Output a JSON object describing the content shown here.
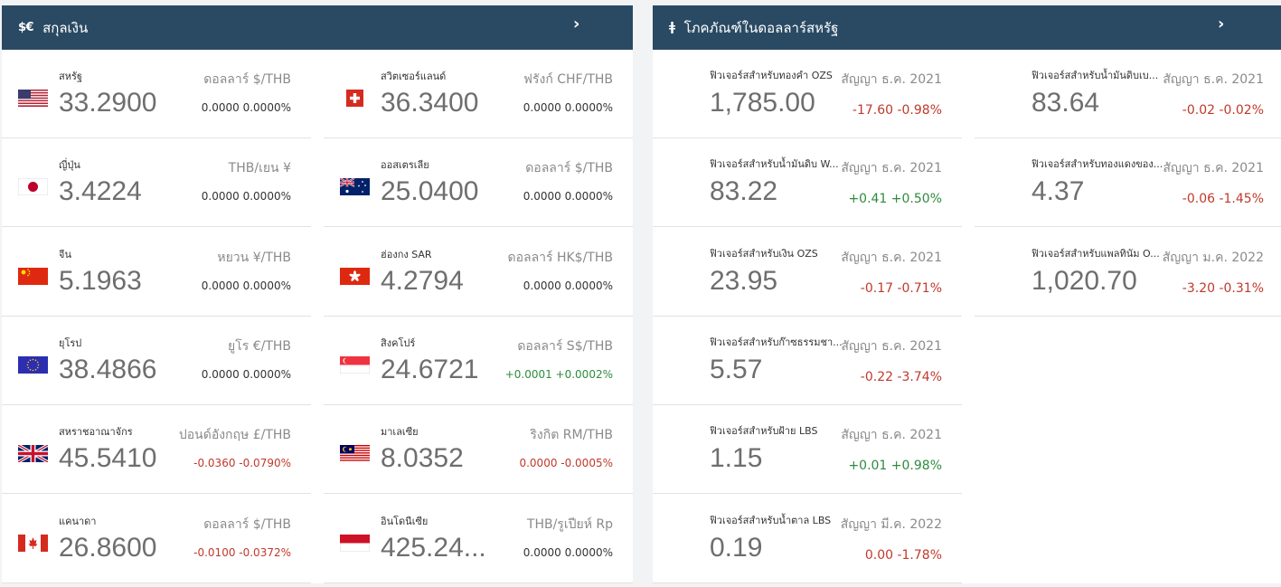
{
  "currency_panel": {
    "icon": "$€",
    "title": "สกุลเงิน",
    "arrow": "›",
    "items": [
      {
        "country": "สหรัฐ",
        "rate": "33.2900",
        "pair": "ดอลลาร์ $/THB",
        "change": "0.0000 0.0000%",
        "dir": "flat",
        "flag": "us"
      },
      {
        "country": "สวิตเซอร์แลนด์",
        "rate": "36.3400",
        "pair": "ฟรังก์ CHF/THB",
        "change": "0.0000 0.0000%",
        "dir": "flat",
        "flag": "ch"
      },
      {
        "country": "ญี่ปุ่น",
        "rate": "3.4224",
        "pair": "THB/เยน ¥",
        "change": "0.0000 0.0000%",
        "dir": "flat",
        "flag": "jp"
      },
      {
        "country": "ออสเตรเลีย",
        "rate": "25.0400",
        "pair": "ดอลลาร์ $/THB",
        "change": "0.0000 0.0000%",
        "dir": "flat",
        "flag": "au"
      },
      {
        "country": "จีน",
        "rate": "5.1963",
        "pair": "หยวน ¥/THB",
        "change": "0.0000 0.0000%",
        "dir": "flat",
        "flag": "cn"
      },
      {
        "country": "ฮ่องกง SAR",
        "rate": "4.2794",
        "pair": "ดอลลาร์ HK$/THB",
        "change": "0.0000 0.0000%",
        "dir": "flat",
        "flag": "hk"
      },
      {
        "country": "ยุโรป",
        "rate": "38.4866",
        "pair": "ยูโร €/THB",
        "change": "0.0000 0.0000%",
        "dir": "flat",
        "flag": "eu"
      },
      {
        "country": "สิงคโปร์",
        "rate": "24.6721",
        "pair": "ดอลลาร์ S$/THB",
        "change": "+0.0001 +0.0002%",
        "dir": "up",
        "flag": "sg"
      },
      {
        "country": "สหราชอาณาจักร",
        "rate": "45.5410",
        "pair": "ปอนด์อังกฤษ £/THB",
        "change": "-0.0360 -0.0790%",
        "dir": "down",
        "flag": "gb"
      },
      {
        "country": "มาเลเซีย",
        "rate": "8.0352",
        "pair": "ริงกิต RM/THB",
        "change": "0.0000 -0.0005%",
        "dir": "down",
        "flag": "my"
      },
      {
        "country": "แคนาดา",
        "rate": "26.8600",
        "pair": "ดอลลาร์ $/THB",
        "change": "-0.0100 -0.0372%",
        "dir": "down",
        "flag": "ca"
      },
      {
        "country": "อินโดนีเซีย",
        "rate": "425.24...",
        "pair": "THB/รูเปียห์ Rp",
        "change": "0.0000 0.0000%",
        "dir": "flat",
        "flag": "id"
      }
    ]
  },
  "commodity_panel": {
    "icon": "ǂ",
    "title": "โภคภัณฑ์ในดอลลาร์สหรัฐ",
    "arrow": "›",
    "items": [
      {
        "name": "ฟิวเจอร์สสำหรับทองคำ OZS",
        "value": "1,785.00",
        "contract": "สัญญา ธ.ค. 2021",
        "change": "-17.60 -0.98%",
        "dir": "down"
      },
      {
        "name": "ฟิวเจอร์สสำหรับน้ำมันดิบเบ...",
        "value": "83.64",
        "contract": "สัญญา ธ.ค. 2021",
        "change": "-0.02 -0.02%",
        "dir": "down"
      },
      {
        "name": "ฟิวเจอร์สสำหรับน้ำมันดิบ W...",
        "value": "83.22",
        "contract": "สัญญา ธ.ค. 2021",
        "change": "+0.41 +0.50%",
        "dir": "up"
      },
      {
        "name": "ฟิวเจอร์สสำหรับทองแดงของ...",
        "value": "4.37",
        "contract": "สัญญา ธ.ค. 2021",
        "change": "-0.06 -1.45%",
        "dir": "down"
      },
      {
        "name": "ฟิวเจอร์สสำหรับเงิน OZS",
        "value": "23.95",
        "contract": "สัญญา ธ.ค. 2021",
        "change": "-0.17 -0.71%",
        "dir": "down"
      },
      {
        "name": "ฟิวเจอร์สสำหรับแพลทินัม O...",
        "value": "1,020.70",
        "contract": "สัญญา ม.ค. 2022",
        "change": "-3.20 -0.31%",
        "dir": "down"
      },
      {
        "name": "ฟิวเจอร์สสำหรับก๊าซธรรมชา...",
        "value": "5.57",
        "contract": "สัญญา ธ.ค. 2021",
        "change": "-0.22 -3.74%",
        "dir": "down"
      },
      {
        "name": "ฟิวเจอร์สสำหรับฝ้าย LBS",
        "value": "1.15",
        "contract": "สัญญา ธ.ค. 2021",
        "change": "+0.01 +0.98%",
        "dir": "up"
      },
      {
        "name": "ฟิวเจอร์สสำหรับน้ำตาล LBS",
        "value": "0.19",
        "contract": "สัญญา มี.ค. 2022",
        "change": "0.00 -1.78%",
        "dir": "down"
      }
    ]
  }
}
